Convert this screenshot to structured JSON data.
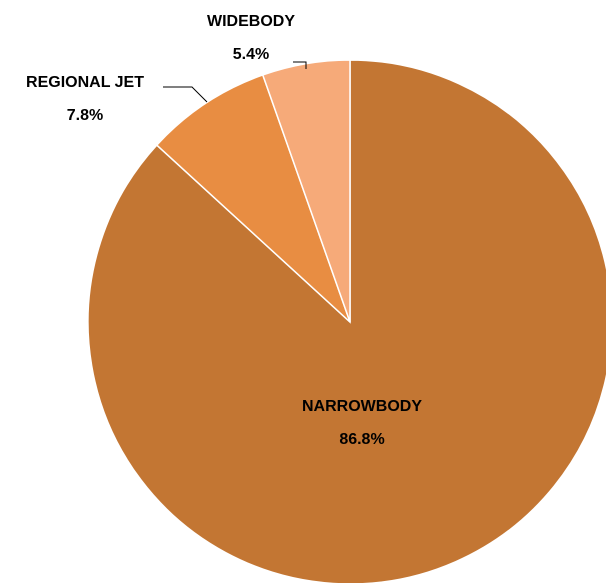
{
  "chart_data": {
    "type": "pie",
    "slices": [
      {
        "label": "NARROWBODY",
        "value": 86.8,
        "value_label": "86.8%",
        "color": "#C37633"
      },
      {
        "label": "REGIONAL JET",
        "value": 7.8,
        "value_label": "7.8%",
        "color": "#E88D42"
      },
      {
        "label": "WIDEBODY",
        "value": 5.4,
        "value_label": "5.4%",
        "color": "#F6AA79"
      }
    ],
    "slice_border_color": "#ffffff",
    "start_angle_deg": 0,
    "direction": "clockwise",
    "legend": "none"
  }
}
